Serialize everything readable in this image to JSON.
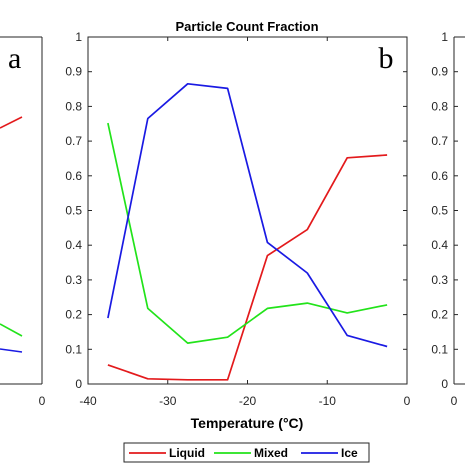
{
  "figure": {
    "panel_left": {
      "letter": "a",
      "x_tick_zero": "0"
    },
    "panel_right": {
      "x_tick_zero": "0"
    }
  },
  "chart_data": {
    "type": "line",
    "title": "Particle Count Fraction",
    "panel_label": "b",
    "xlabel": "Temperature (°C)",
    "ylabel": "",
    "xlim": [
      -40,
      0
    ],
    "ylim": [
      0,
      1
    ],
    "xticks": [
      "-40",
      "-30",
      "-20",
      "-10",
      "0"
    ],
    "yticks": [
      "0",
      "0.1",
      "0.2",
      "0.3",
      "0.4",
      "0.5",
      "0.6",
      "0.7",
      "0.8",
      "0.9",
      "1"
    ],
    "grid": false,
    "legend_position": "bottom",
    "x": [
      -37.5,
      -32.5,
      -27.5,
      -22.5,
      -17.5,
      -12.5,
      -7.5,
      -2.5
    ],
    "series": [
      {
        "name": "Liquid",
        "color": "#e31a1c",
        "values": [
          0.055,
          0.015,
          0.012,
          0.012,
          0.37,
          0.445,
          0.652,
          0.66
        ]
      },
      {
        "name": "Mixed",
        "color": "#22e31a",
        "values": [
          0.752,
          0.218,
          0.118,
          0.135,
          0.218,
          0.233,
          0.205,
          0.228
        ]
      },
      {
        "name": "Ice",
        "color": "#1a1ae3",
        "values": [
          0.19,
          0.765,
          0.865,
          0.852,
          0.408,
          0.32,
          0.14,
          0.108
        ]
      }
    ]
  }
}
